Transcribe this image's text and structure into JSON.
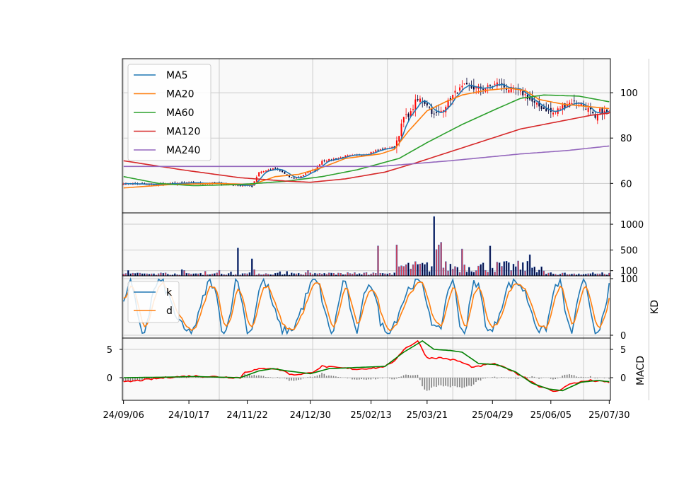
{
  "chart_data": {
    "type": "candlestick",
    "x_labels": [
      "24/09/06",
      "24/10/17",
      "24/11/22",
      "24/12/30",
      "25/02/13",
      "25/03/21",
      "25/04/29",
      "25/06/05",
      "25/07/30"
    ],
    "price_panel": {
      "ylim": [
        47,
        115
      ],
      "yticks": [
        60,
        80,
        100
      ],
      "grid": true,
      "legend_position": "top-left",
      "legend": [
        "MA5",
        "MA20",
        "MA60",
        "MA120",
        "MA240"
      ],
      "colors": {
        "MA5": "#1f77b4",
        "MA20": "#ff7f0e",
        "MA60": "#2ca02c",
        "MA120": "#d62728",
        "MA240": "#9467bd"
      },
      "close_keyframes": [
        [
          0,
          60
        ],
        [
          10,
          59.5
        ],
        [
          20,
          59.8
        ],
        [
          30,
          60.2
        ],
        [
          40,
          60.1
        ],
        [
          50,
          59.2
        ],
        [
          55,
          59
        ],
        [
          58,
          65
        ],
        [
          60,
          65.5
        ],
        [
          65,
          66.5
        ],
        [
          68,
          65
        ],
        [
          72,
          62
        ],
        [
          75,
          62.5
        ],
        [
          78,
          64.5
        ],
        [
          82,
          66
        ],
        [
          85,
          70
        ],
        [
          89,
          70.5
        ],
        [
          95,
          72
        ],
        [
          100,
          72.5
        ],
        [
          104,
          73
        ],
        [
          108,
          74.5
        ],
        [
          112,
          75.5
        ],
        [
          116,
          76
        ],
        [
          118,
          82
        ],
        [
          120,
          89
        ],
        [
          123,
          91
        ],
        [
          125,
          96
        ],
        [
          127,
          97
        ],
        [
          130,
          95
        ],
        [
          133,
          90
        ],
        [
          136,
          92
        ],
        [
          139,
          96
        ],
        [
          142,
          100
        ],
        [
          146,
          103
        ],
        [
          150,
          102
        ],
        [
          155,
          102
        ],
        [
          160,
          104
        ],
        [
          164,
          102
        ],
        [
          168,
          101
        ],
        [
          172,
          99
        ],
        [
          176,
          95
        ],
        [
          180,
          93
        ],
        [
          184,
          91
        ],
        [
          188,
          94
        ],
        [
          192,
          96
        ],
        [
          196,
          95
        ],
        [
          200,
          92
        ],
        [
          202,
          88
        ],
        [
          204,
          92
        ],
        [
          208,
          91
        ]
      ],
      "ma_keyframes": {
        "MA5": "close",
        "MA20": [
          [
            0,
            58
          ],
          [
            20,
            59.5
          ],
          [
            40,
            60
          ],
          [
            55,
            59.5
          ],
          [
            65,
            63
          ],
          [
            75,
            64
          ],
          [
            85,
            67
          ],
          [
            95,
            71
          ],
          [
            110,
            73
          ],
          [
            116,
            75
          ],
          [
            122,
            83
          ],
          [
            130,
            92
          ],
          [
            138,
            96
          ],
          [
            145,
            99
          ],
          [
            155,
            101
          ],
          [
            165,
            102
          ],
          [
            172,
            101
          ],
          [
            178,
            97
          ],
          [
            188,
            95
          ],
          [
            198,
            94
          ],
          [
            208,
            93
          ]
        ],
        "MA60": [
          [
            0,
            63
          ],
          [
            15,
            60
          ],
          [
            30,
            59
          ],
          [
            50,
            59.5
          ],
          [
            70,
            61
          ],
          [
            85,
            63
          ],
          [
            100,
            66
          ],
          [
            118,
            71
          ],
          [
            130,
            78
          ],
          [
            145,
            86
          ],
          [
            160,
            93
          ],
          [
            170,
            97.5
          ],
          [
            180,
            99
          ],
          [
            195,
            98.5
          ],
          [
            208,
            96
          ]
        ],
        "MA120": [
          [
            0,
            70
          ],
          [
            25,
            66
          ],
          [
            50,
            62.5
          ],
          [
            70,
            61
          ],
          [
            80,
            60.5
          ],
          [
            95,
            62
          ],
          [
            112,
            65
          ],
          [
            125,
            69
          ],
          [
            140,
            74
          ],
          [
            158,
            80
          ],
          [
            170,
            84
          ],
          [
            185,
            87
          ],
          [
            200,
            90
          ],
          [
            208,
            91
          ]
        ],
        "MA240": [
          [
            0,
            67.5
          ],
          [
            110,
            67.5
          ],
          [
            140,
            70
          ],
          [
            170,
            73
          ],
          [
            190,
            74.5
          ],
          [
            208,
            76.5
          ]
        ]
      }
    },
    "volume_panel": {
      "ylim": [
        0,
        1220
      ],
      "yticks": [
        100,
        500,
        1000
      ],
      "spikes": [
        [
          49,
          540
        ],
        [
          55,
          330
        ],
        [
          109,
          580
        ],
        [
          117,
          600
        ],
        [
          133,
          1150
        ],
        [
          134,
          510
        ],
        [
          135,
          600
        ],
        [
          136,
          650
        ],
        [
          145,
          520
        ],
        [
          157,
          580
        ],
        [
          174,
          410
        ]
      ]
    },
    "kd_panel": {
      "ylabel": "KD",
      "ylim": [
        -5,
        105
      ],
      "yticks": [
        0,
        100
      ],
      "legend": [
        "k",
        "d"
      ],
      "legend_position": "top-left",
      "colors": {
        "k": "#1f77b4",
        "d": "#ff7f0e"
      }
    },
    "macd_panel": {
      "ylabel": "MACD",
      "ylim": [
        -4,
        7
      ],
      "yticks": [
        0,
        5
      ],
      "dif_keyframes": [
        [
          0,
          -0.8
        ],
        [
          20,
          0.1
        ],
        [
          30,
          0.3
        ],
        [
          50,
          0
        ],
        [
          52,
          1
        ],
        [
          58,
          1.5
        ],
        [
          63,
          1.7
        ],
        [
          68,
          1.3
        ],
        [
          72,
          0.5
        ],
        [
          80,
          0.8
        ],
        [
          85,
          2
        ],
        [
          90,
          1.8
        ],
        [
          100,
          1.5
        ],
        [
          110,
          1.8
        ],
        [
          115,
          2.5
        ],
        [
          120,
          5
        ],
        [
          126,
          6.5
        ],
        [
          130,
          3.5
        ],
        [
          136,
          3.5
        ],
        [
          143,
          3
        ],
        [
          150,
          1.8
        ],
        [
          158,
          2.5
        ],
        [
          165,
          1.5
        ],
        [
          172,
          0
        ],
        [
          178,
          -1.5
        ],
        [
          185,
          -2.5
        ],
        [
          192,
          -1
        ],
        [
          200,
          -0.5
        ],
        [
          208,
          -0.8
        ]
      ],
      "dem_keyframes": [
        [
          0,
          0
        ],
        [
          20,
          0.1
        ],
        [
          30,
          0.2
        ],
        [
          50,
          0
        ],
        [
          58,
          1.2
        ],
        [
          64,
          1.6
        ],
        [
          70,
          1.2
        ],
        [
          80,
          0.7
        ],
        [
          88,
          1.6
        ],
        [
          100,
          1.8
        ],
        [
          112,
          2
        ],
        [
          120,
          4.5
        ],
        [
          128,
          6.5
        ],
        [
          133,
          5
        ],
        [
          140,
          4.8
        ],
        [
          145,
          4.5
        ],
        [
          152,
          2.5
        ],
        [
          160,
          2.3
        ],
        [
          168,
          1
        ],
        [
          175,
          -1
        ],
        [
          182,
          -2
        ],
        [
          188,
          -2.3
        ],
        [
          196,
          -0.8
        ],
        [
          203,
          -0.5
        ],
        [
          208,
          -0.7
        ]
      ],
      "colors": {
        "dif": "#ff0000",
        "dem": "#008000",
        "osc": "#808080"
      }
    }
  }
}
